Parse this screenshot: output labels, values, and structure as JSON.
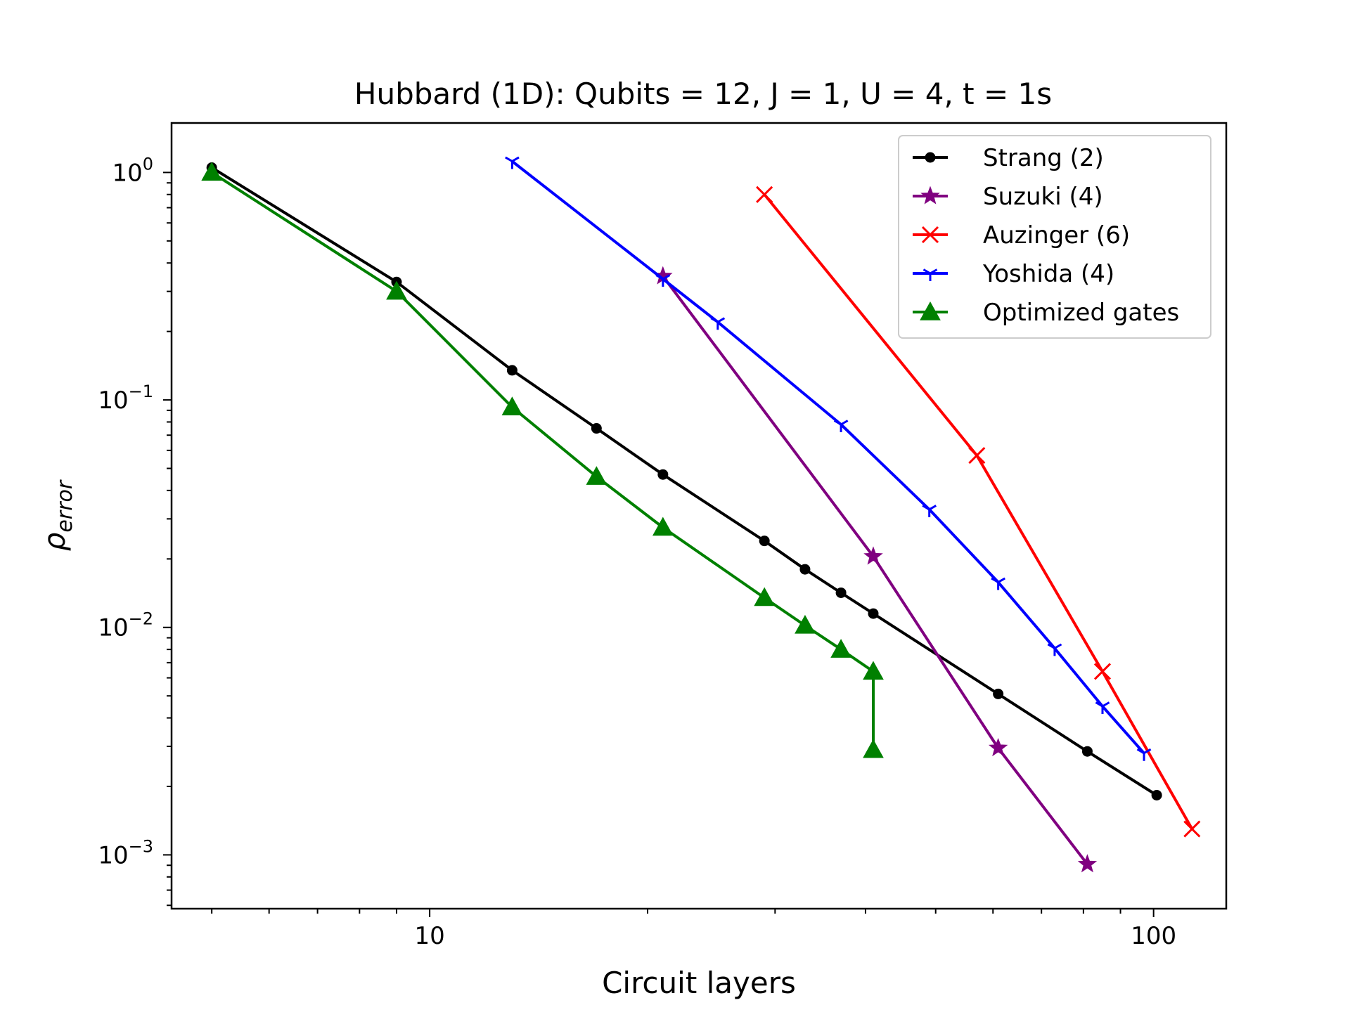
{
  "chart_data": {
    "type": "line",
    "title": "Hubbard (1D): Qubits = 12, J = 1, U = 4, t = 1s",
    "xlabel": "Circuit layers",
    "ylabel": {
      "base": "ρ",
      "subscript": "error"
    },
    "xscale": "log",
    "yscale": "log",
    "xlim": [
      4.4,
      126
    ],
    "ylim": [
      0.00058,
      1.65
    ],
    "x_ticks": [
      {
        "value": 10,
        "label": "10"
      },
      {
        "value": 100,
        "label": "100"
      }
    ],
    "y_ticks": [
      {
        "value": 1,
        "base": "10",
        "exp": "0"
      },
      {
        "value": 0.1,
        "base": "10",
        "exp": "−1"
      },
      {
        "value": 0.01,
        "base": "10",
        "exp": "−2"
      },
      {
        "value": 0.001,
        "base": "10",
        "exp": "−3"
      }
    ],
    "grid": false,
    "legend_position": "top-right",
    "series": [
      {
        "name": "Strang (2)",
        "color": "#000000",
        "marker": "circle",
        "x": [
          5,
          9,
          13,
          17,
          21,
          29,
          33,
          37,
          41,
          61,
          81,
          101
        ],
        "y": [
          1.05,
          0.33,
          0.135,
          0.075,
          0.047,
          0.024,
          0.018,
          0.0142,
          0.0115,
          0.0051,
          0.00285,
          0.00183
        ]
      },
      {
        "name": "Suzuki (4)",
        "color": "#800080",
        "marker": "star",
        "x": [
          21,
          41,
          61,
          81
        ],
        "y": [
          0.35,
          0.0205,
          0.00295,
          0.00091
        ]
      },
      {
        "name": "Auzinger (6)",
        "color": "#ff0000",
        "marker": "x",
        "x": [
          29,
          57,
          85,
          113
        ],
        "y": [
          0.8,
          0.057,
          0.0064,
          0.0013
        ]
      },
      {
        "name": "Yoshida (4)",
        "color": "#0000ff",
        "marker": "tri_down",
        "x": [
          13,
          21,
          25,
          37,
          49,
          61,
          73,
          85,
          97
        ],
        "y": [
          1.12,
          0.34,
          0.22,
          0.078,
          0.033,
          0.0158,
          0.0081,
          0.0045,
          0.0028
        ]
      },
      {
        "name": "Optimized gates",
        "color": "#008000",
        "marker": "triangle",
        "x": [
          5,
          9,
          13,
          17,
          21,
          29,
          33,
          37,
          41,
          41
        ],
        "y": [
          1.0,
          0.3,
          0.093,
          0.046,
          0.0275,
          0.0135,
          0.0102,
          0.008,
          0.0064,
          0.0029
        ]
      }
    ]
  }
}
